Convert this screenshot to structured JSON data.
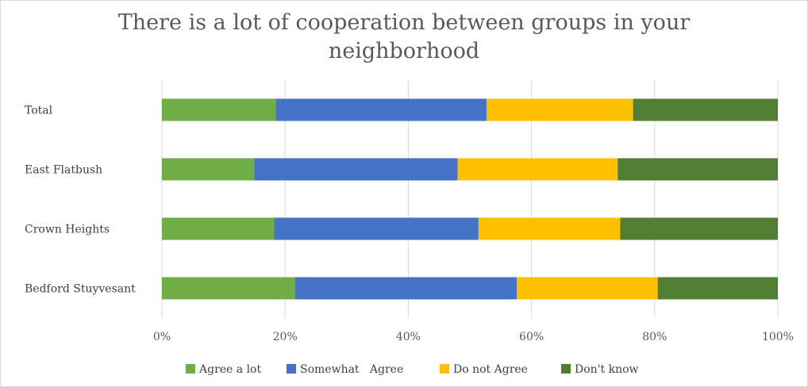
{
  "chart_data": {
    "type": "bar",
    "orientation": "horizontal",
    "stacked": true,
    "title": "There is a lot of cooperation between groups in your neighborhood",
    "title_lines": [
      "There is a lot of cooperation between groups in your",
      "neighborhood"
    ],
    "categories": [
      "Total",
      "East Flatbush",
      "Crown Heights",
      "Bedford Stuyvesant"
    ],
    "series": [
      {
        "name": "Agree a lot",
        "color": "#70ad47",
        "values": [
          18.5,
          15.0,
          18.2,
          21.6
        ]
      },
      {
        "name": "Somewhat   Agree",
        "color": "#4472c4",
        "values": [
          34.2,
          33.0,
          33.2,
          36.0
        ]
      },
      {
        "name": "Do not Agree",
        "color": "#ffc000",
        "values": [
          23.8,
          26.0,
          23.0,
          22.9
        ]
      },
      {
        "name": "Don't know",
        "color": "#507e32",
        "values": [
          23.5,
          26.0,
          25.6,
          19.5
        ]
      }
    ],
    "xlim": [
      0,
      100
    ],
    "xticks": [
      "0%",
      "20%",
      "40%",
      "60%",
      "80%",
      "100%"
    ],
    "grid": true,
    "legend_position": "bottom"
  }
}
